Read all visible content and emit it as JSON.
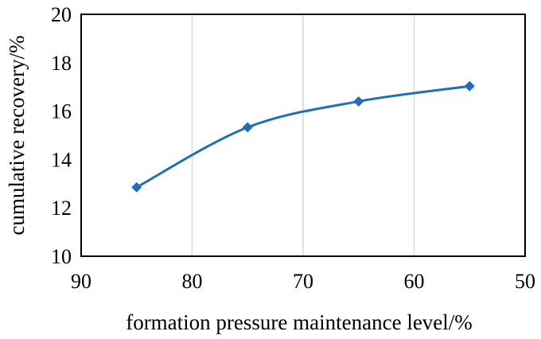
{
  "chart_data": {
    "type": "line",
    "title": "",
    "xlabel": "formation pressure maintenance level/%",
    "ylabel": "cumulative recovery/%",
    "x_reversed": true,
    "xlim": [
      90,
      50
    ],
    "ylim": [
      10,
      20
    ],
    "x_ticks": [
      90,
      80,
      70,
      60,
      50
    ],
    "y_ticks": [
      10,
      12,
      14,
      16,
      18,
      20
    ],
    "grid": "vertical",
    "legend": "none",
    "series": [
      {
        "name": "cumulative recovery",
        "color": "#1f6fb8",
        "marker": "diamond",
        "smooth": true,
        "x": [
          85,
          75,
          65,
          55
        ],
        "y": [
          12.85,
          15.33,
          16.4,
          17.03
        ]
      }
    ]
  }
}
